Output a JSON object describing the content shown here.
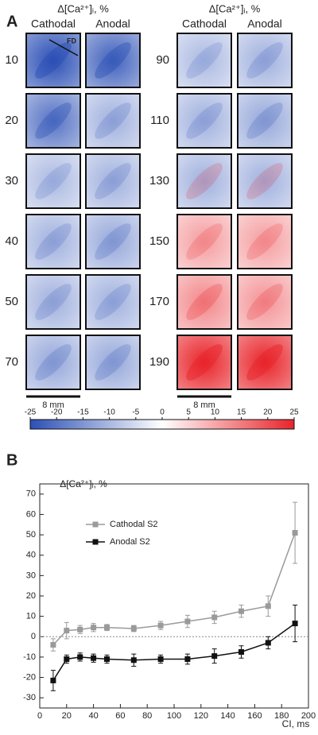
{
  "panel_a": {
    "label": "A",
    "columns": [
      {
        "header": "Δ[Ca²⁺]ᵢ, %",
        "cathodal": "Cathodal",
        "anodal": "Anodal",
        "rows": [
          10,
          20,
          30,
          40,
          50,
          70
        ],
        "scale_bar": "8 mm"
      },
      {
        "header": "Δ[Ca²⁺]ᵢ, %",
        "cathodal": "Cathodal",
        "anodal": "Anodal",
        "rows": [
          90,
          110,
          130,
          150,
          170,
          190
        ],
        "scale_bar": "8 mm"
      }
    ],
    "fd_label": "FD",
    "colorbar": {
      "lim": [
        -25,
        25
      ],
      "ticks": [
        -25,
        -20,
        -15,
        -10,
        -5,
        0,
        5,
        10,
        15,
        20,
        25
      ],
      "colors": [
        "#2b4fb5",
        "#ffffff",
        "#e8242a"
      ]
    }
  },
  "chart_data": {
    "type": "line",
    "label": "B",
    "y_label": "Δ[Ca²⁺]ᵢ, %",
    "x_label": "CI, ms",
    "x": [
      10,
      20,
      30,
      40,
      50,
      70,
      90,
      110,
      130,
      150,
      170,
      190
    ],
    "series": [
      {
        "name": "Cathodal S2",
        "color": "#9a9a9a",
        "values": [
          -4,
          3,
          3.5,
          4.5,
          4.5,
          4,
          5.5,
          7.5,
          9.5,
          12.5,
          15,
          51
        ],
        "errors": [
          3,
          4,
          2,
          2,
          1.5,
          1.5,
          2,
          3,
          3,
          3,
          5,
          15
        ]
      },
      {
        "name": "Anodal S2",
        "color": "#111111",
        "values": [
          -21.5,
          -11,
          -10,
          -10.5,
          -11,
          -11.5,
          -11,
          -11,
          -9.5,
          -7.5,
          -3,
          6.5
        ],
        "errors": [
          5,
          2,
          2,
          2,
          2,
          3,
          2,
          2.5,
          3.5,
          3,
          3,
          9
        ]
      }
    ],
    "xlim": [
      0,
      200
    ],
    "xticks": [
      0,
      20,
      40,
      60,
      80,
      100,
      120,
      140,
      160,
      180,
      200
    ],
    "ylim": [
      -35,
      75
    ],
    "yticks": [
      -30,
      -20,
      -10,
      0,
      10,
      20,
      30,
      40,
      50,
      60,
      70
    ],
    "zero_line": true,
    "legend": "upper-left"
  }
}
